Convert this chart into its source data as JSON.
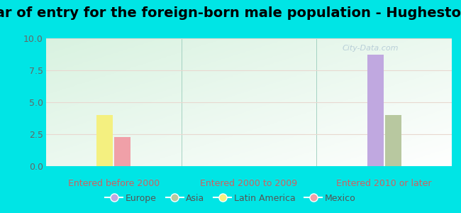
{
  "title": "Year of entry for the foreign-born male population - Hughestown",
  "groups": [
    "Entered before 2000",
    "Entered 2000 to 2009",
    "Entered 2010 or later"
  ],
  "legend_labels": [
    "Europe",
    "Asia",
    "Latin America",
    "Mexico"
  ],
  "bar_colors": {
    "Europe": "#c0a8e0",
    "Asia": "#b8c8a0",
    "Latin America": "#f4f080",
    "Mexico": "#f0a0a8"
  },
  "data": {
    "Entered before 2000": {
      "Europe": 0,
      "Asia": 0,
      "Latin America": 4.0,
      "Mexico": 2.3
    },
    "Entered 2000 to 2009": {
      "Europe": 0,
      "Asia": 0,
      "Latin America": 0,
      "Mexico": 0
    },
    "Entered 2010 or later": {
      "Europe": 8.7,
      "Asia": 4.0,
      "Latin America": 0,
      "Mexico": 0
    }
  },
  "ylim": [
    0,
    10
  ],
  "yticks": [
    0,
    2.5,
    5,
    7.5,
    10
  ],
  "background_color": "#00e5e5",
  "plot_bg_color": "#ddf0e0",
  "title_fontsize": 14,
  "axis_label_color": "#d06060",
  "axis_label_fontsize": 9,
  "legend_fontsize": 9,
  "bar_width": 0.12,
  "watermark": "City-Data.com"
}
